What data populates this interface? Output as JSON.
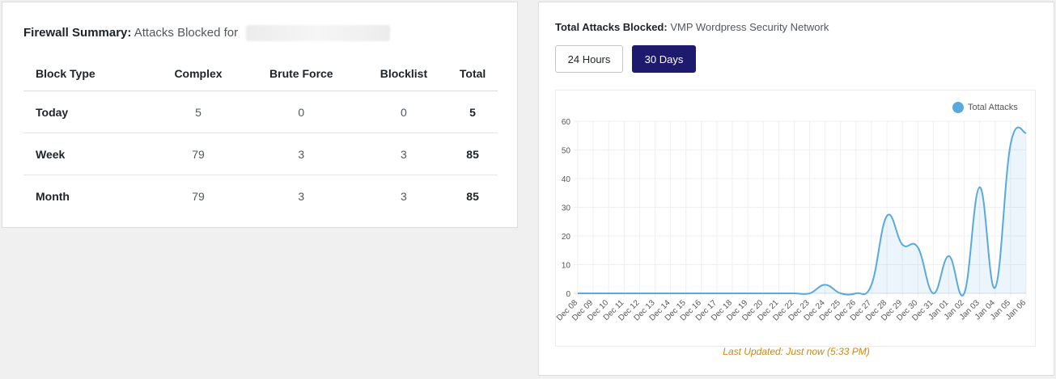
{
  "firewall_summary": {
    "title": "Firewall Summary:",
    "subtitle": "Attacks Blocked for",
    "columns": [
      "Block Type",
      "Complex",
      "Brute Force",
      "Blocklist",
      "Total"
    ],
    "rows": [
      {
        "label": "Today",
        "complex": "5",
        "brute_force": "0",
        "blocklist": "0",
        "total": "5"
      },
      {
        "label": "Week",
        "complex": "79",
        "brute_force": "3",
        "blocklist": "3",
        "total": "85"
      },
      {
        "label": "Month",
        "complex": "79",
        "brute_force": "3",
        "blocklist": "3",
        "total": "85"
      }
    ]
  },
  "attacks_panel": {
    "title": "Total Attacks Blocked:",
    "subtitle": "VMP Wordpress Security Network",
    "buttons": {
      "hours_24": "24 Hours",
      "days_30": "30 Days"
    },
    "active_range": "30 Days",
    "last_updated": "Last Updated: Just now (5:33 PM)"
  },
  "chart_data": {
    "type": "area",
    "x": [
      "Dec 08",
      "Dec 09",
      "Dec 10",
      "Dec 11",
      "Dec 12",
      "Dec 13",
      "Dec 14",
      "Dec 15",
      "Dec 16",
      "Dec 17",
      "Dec 18",
      "Dec 19",
      "Dec 20",
      "Dec 21",
      "Dec 22",
      "Dec 23",
      "Dec 24",
      "Dec 25",
      "Dec 26",
      "Dec 27",
      "Dec 28",
      "Dec 29",
      "Dec 30",
      "Dec 31",
      "Jan 01",
      "Jan 02",
      "Jan 03",
      "Jan 04",
      "Jan 05",
      "Jan 06"
    ],
    "series": [
      {
        "name": "Total Attacks",
        "color": "#5aa9dd",
        "values": [
          0,
          0,
          0,
          0,
          0,
          0,
          0,
          0,
          0,
          0,
          0,
          0,
          0,
          0,
          0,
          0,
          3,
          0,
          0,
          3,
          27,
          17,
          16,
          0,
          13,
          0,
          37,
          2,
          52,
          56
        ]
      }
    ],
    "y_ticks": [
      0,
      10,
      20,
      30,
      40,
      50,
      60
    ],
    "ylim": [
      0,
      60
    ],
    "legend_position": "top-right",
    "grid": true
  }
}
